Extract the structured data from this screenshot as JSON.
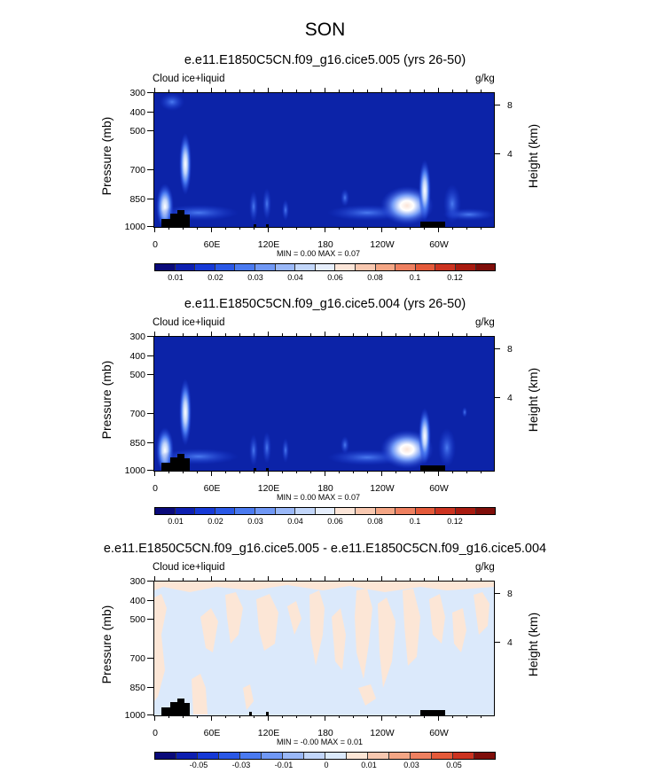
{
  "figure": {
    "title": "SON"
  },
  "chart_data": [
    {
      "type": "heatmap",
      "title": "e.e11.E1850C5CN.f09_g16.cice5.005 (yrs 26-50)",
      "variable_label": "Cloud ice+liquid",
      "units": "g/kg",
      "ylabel": "Pressure (mb)",
      "ylabel_right": "Height (km)",
      "yticks": [
        "300",
        "400",
        "500",
        "700",
        "850",
        "1000"
      ],
      "yticks_right": [
        "8",
        "4"
      ],
      "xticks": [
        "0",
        "60E",
        "120E",
        "180",
        "120W",
        "60W"
      ],
      "min_max": "MIN =   0.00  MAX =   0.07",
      "colorbar_labels": [
        "0.01",
        "0.02",
        "0.03",
        "0.04",
        "0.06",
        "0.08",
        "0.1",
        "0.12"
      ],
      "colorbar_colors": [
        "#0a0a7a",
        "#0d1fb0",
        "#1639d6",
        "#2a58e6",
        "#4a7af0",
        "#7098f5",
        "#9ab8f8",
        "#c2d6fa",
        "#e6eefc",
        "#fbe5d8",
        "#f8c8b0",
        "#f4a685",
        "#ee8060",
        "#e45a3a",
        "#cc3320",
        "#a81b10",
        "#7f0e0a"
      ]
    },
    {
      "type": "heatmap",
      "title": "e.e11.E1850C5CN.f09_g16.cice5.004 (yrs 26-50)",
      "variable_label": "Cloud ice+liquid",
      "units": "g/kg",
      "ylabel": "Pressure (mb)",
      "ylabel_right": "Height (km)",
      "yticks": [
        "300",
        "400",
        "500",
        "700",
        "850",
        "1000"
      ],
      "yticks_right": [
        "8",
        "4"
      ],
      "xticks": [
        "0",
        "60E",
        "120E",
        "180",
        "120W",
        "60W"
      ],
      "min_max": "MIN =   0.00  MAX =   0.07",
      "colorbar_labels": [
        "0.01",
        "0.02",
        "0.03",
        "0.04",
        "0.06",
        "0.08",
        "0.1",
        "0.12"
      ],
      "colorbar_colors": [
        "#0a0a7a",
        "#0d1fb0",
        "#1639d6",
        "#2a58e6",
        "#4a7af0",
        "#7098f5",
        "#9ab8f8",
        "#c2d6fa",
        "#e6eefc",
        "#fbe5d8",
        "#f8c8b0",
        "#f4a685",
        "#ee8060",
        "#e45a3a",
        "#cc3320",
        "#a81b10",
        "#7f0e0a"
      ]
    },
    {
      "type": "heatmap",
      "title": "e.e11.E1850C5CN.f09_g16.cice5.005 - e.e11.E1850C5CN.f09_g16.cice5.004",
      "variable_label": "Cloud ice+liquid",
      "units": "g/kg",
      "ylabel": "Pressure (mb)",
      "ylabel_right": "Height (km)",
      "yticks": [
        "300",
        "400",
        "500",
        "700",
        "850",
        "1000"
      ],
      "yticks_right": [
        "8",
        "4"
      ],
      "xticks": [
        "0",
        "60E",
        "120E",
        "180",
        "120W",
        "60W"
      ],
      "min_max": "MIN =  -0.00  MAX =   0.01",
      "colorbar_labels": [
        "-0.05",
        "-0.03",
        "-0.01",
        "0",
        "0.01",
        "0.03",
        "0.05"
      ],
      "colorbar_colors": [
        "#0a0a7a",
        "#0d1fb0",
        "#1639d6",
        "#2a58e6",
        "#4a7af0",
        "#7098f5",
        "#9ab8f8",
        "#c2d6fa",
        "#dbe9fb",
        "#fce6d6",
        "#f8c8b0",
        "#f4a685",
        "#ee8060",
        "#e45a3a",
        "#cc3320",
        "#7f0e0a"
      ]
    }
  ]
}
